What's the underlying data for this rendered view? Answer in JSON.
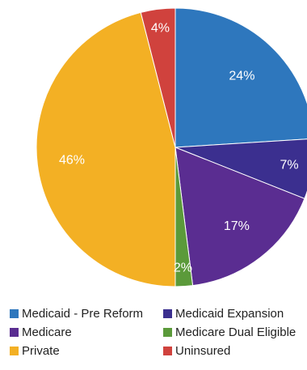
{
  "chart_data": {
    "type": "pie",
    "title": "",
    "slices": [
      {
        "name": "Medicaid - Pre Reform",
        "value": 24,
        "label": "24%",
        "color": "#2e77bd"
      },
      {
        "name": "Medicaid Expansion",
        "value": 7,
        "label": "7%",
        "color": "#3b2f8f"
      },
      {
        "name": "Medicare",
        "value": 17,
        "label": "17%",
        "color": "#5a2d91"
      },
      {
        "name": "Medicare Dual Eligible",
        "value": 2,
        "label": "2%",
        "color": "#5b9a3a"
      },
      {
        "name": "Private",
        "value": 46,
        "label": "46%",
        "color": "#f3b024"
      },
      {
        "name": "Uninsured",
        "value": 4,
        "label": "4%",
        "color": "#d0423d"
      }
    ],
    "legend_position": "bottom",
    "legend_order": [
      0,
      1,
      2,
      3,
      4,
      5
    ]
  }
}
